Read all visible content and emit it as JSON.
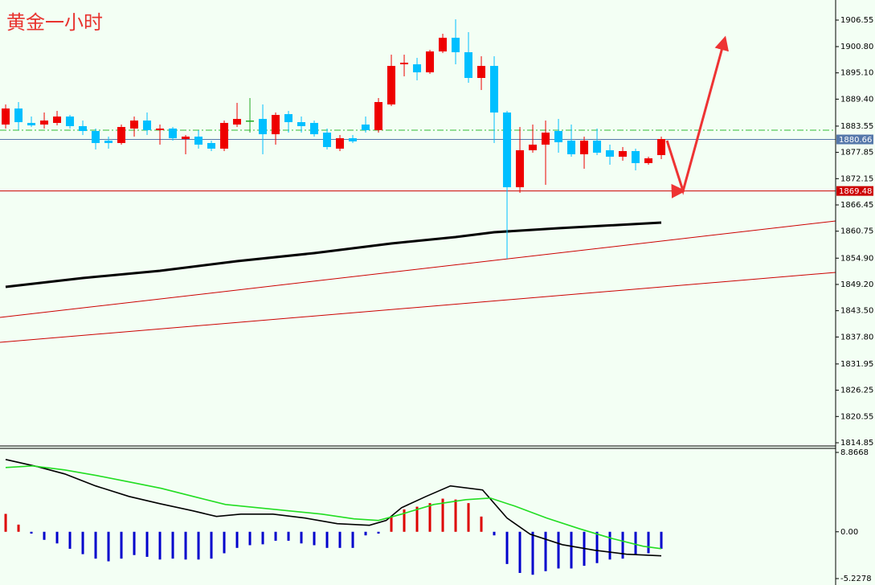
{
  "chart_data": [
    {
      "type": "candlestick",
      "title": "黄金一小时",
      "xlim": [
        -0.44,
        64.56
      ],
      "ylim": [
        1814.15,
        1910.91
      ],
      "yticks": [
        1906.55,
        {
          "value": 1900.8,
          "label": "1900.80"
        },
        {
          "value": 1895.1,
          "label": "1895.10"
        },
        {
          "value": 1889.4,
          "label": "1889.40"
        },
        1883.55,
        1877.85,
        1872.15,
        1866.45,
        1860.75,
        {
          "value": 1854.9,
          "label": "1854.90"
        },
        {
          "value": 1849.2,
          "label": "1849.20"
        },
        {
          "value": 1843.5,
          "label": "1843.50"
        },
        {
          "value": 1837.8,
          "label": "1837.80"
        },
        1831.95,
        1826.25,
        1820.55,
        1814.85
      ],
      "up_color": "#ee0000",
      "down_color": "#00bfff",
      "doji_color": "#22aa22",
      "open": [
        1883.89,
        1887.37,
        1884.24,
        1883.89,
        1884.24,
        1885.63,
        1883.54,
        1882.49,
        1880.4,
        1879.88,
        1883.02,
        1884.76,
        1882.67,
        1883.02,
        1880.75,
        1881.27,
        1879.88,
        1878.66,
        1883.89,
        1884.76,
        1885.11,
        1881.79,
        1886.15,
        1884.41,
        1884.24,
        1882.14,
        1878.66,
        1880.92,
        1883.89,
        1882.67,
        1888.25,
        1896.96,
        1896.96,
        1895.22,
        1899.75,
        1902.72,
        1899.58,
        1894.0,
        1896.61,
        1886.5,
        1870.29,
        1878.31,
        1879.53,
        1882.49,
        1880.4,
        1877.44,
        1880.4,
        1878.31,
        1876.91,
        1878.13,
        1875.52,
        1877.26
      ],
      "high": [
        1888.25,
        1888.77,
        1885.63,
        1886.5,
        1886.85,
        1885.98,
        1884.76,
        1883.02,
        1881.27,
        1883.89,
        1885.63,
        1886.5,
        1883.89,
        1883.36,
        1881.62,
        1882.67,
        1880.4,
        1884.76,
        1888.59,
        1889.64,
        1888.25,
        1886.5,
        1886.85,
        1885.63,
        1884.76,
        1883.02,
        1881.62,
        1881.62,
        1885.63,
        1889.64,
        1899.05,
        1899.05,
        1898.36,
        1900.1,
        1903.59,
        1906.72,
        1903.94,
        1898.71,
        1898.71,
        1886.85,
        1883.36,
        1883.89,
        1884.76,
        1885.11,
        1883.89,
        1881.27,
        1883.02,
        1879.53,
        1879.01,
        1878.66,
        1876.91,
        1881.27
      ],
      "low": [
        1883.02,
        1882.67,
        1883.36,
        1883.02,
        1883.71,
        1883.02,
        1881.62,
        1878.48,
        1878.66,
        1879.53,
        1881.27,
        1881.62,
        1879.53,
        1880.4,
        1877.44,
        1878.66,
        1878.13,
        1878.13,
        1883.36,
        1882.14,
        1877.44,
        1879.53,
        1882.14,
        1882.14,
        1881.27,
        1878.48,
        1878.13,
        1879.88,
        1882.14,
        1882.14,
        1887.9,
        1894.35,
        1893.48,
        1894.87,
        1899.4,
        1896.96,
        1892.95,
        1891.38,
        1879.88,
        1854.77,
        1869.07,
        1877.78,
        1870.81,
        1877.78,
        1876.91,
        1874.3,
        1877.26,
        1875.17,
        1876.04,
        1873.95,
        1875.17,
        1876.39
      ],
      "close": [
        1887.37,
        1884.41,
        1883.71,
        1884.76,
        1885.63,
        1883.54,
        1882.49,
        1879.88,
        1879.88,
        1883.36,
        1884.76,
        1882.67,
        1883.02,
        1880.92,
        1881.27,
        1879.53,
        1878.66,
        1884.24,
        1885.11,
        1884.76,
        1881.79,
        1885.98,
        1884.41,
        1883.54,
        1881.79,
        1879.01,
        1880.92,
        1880.23,
        1882.67,
        1888.77,
        1896.61,
        1897.31,
        1895.22,
        1899.75,
        1902.72,
        1899.58,
        1894.0,
        1896.61,
        1886.5,
        1870.29,
        1878.31,
        1879.53,
        1882.14,
        1880.05,
        1877.44,
        1880.4,
        1877.78,
        1876.91,
        1878.13,
        1875.52,
        1876.56,
        1880.75
      ],
      "moving_average": {
        "color": "#000000",
        "x": [
          0,
          6,
          12,
          18,
          24,
          30,
          35,
          38,
          43,
          51
        ],
        "values": [
          1848.67,
          1850.59,
          1852.16,
          1854.25,
          1855.99,
          1858.08,
          1859.48,
          1860.53,
          1861.4,
          1862.62
        ]
      },
      "trendlines": [
        {
          "color": "#cc0000",
          "x": [
            -0.44,
            64.56
          ],
          "values": [
            1842.05,
            1862.97
          ]
        },
        {
          "color": "#cc0000",
          "x": [
            -0.44,
            64.56
          ],
          "values": [
            1836.64,
            1851.81
          ]
        }
      ],
      "price_lines": [
        {
          "value": 1882.67,
          "color": "#33bb33",
          "style": "dashdot",
          "show_label": false
        },
        {
          "value": 1880.66,
          "color": "#5577aa",
          "style": "solid",
          "show_label": true
        },
        {
          "value": 1869.48,
          "color": "#cc0000",
          "style": "solid",
          "show_label": true
        }
      ],
      "projection": {
        "color": "#ee3333",
        "x": [
          51.44,
          52.69,
          55.94
        ],
        "values": [
          1880.4,
          1869.48,
          1902.55
        ]
      }
    },
    {
      "type": "macd",
      "xlim": [
        -0.44,
        64.56
      ],
      "ylim": [
        -5.2278,
        8.8668
      ],
      "yticks": [
        8.8668,
        {
          "value": 0,
          "label": "0.00"
        },
        -5.2278
      ],
      "histogram": {
        "up_color": "#dd0000",
        "down_color": "#0000cc",
        "values": [
          2.0,
          0.8,
          -0.2,
          -0.9,
          -1.3,
          -1.9,
          -2.5,
          -3.0,
          -3.3,
          -3.0,
          -2.6,
          -2.8,
          -3.1,
          -3.0,
          -3.1,
          -3.1,
          -3.0,
          -2.4,
          -1.8,
          -1.5,
          -1.4,
          -1.0,
          -1.0,
          -1.3,
          -1.5,
          -1.8,
          -1.8,
          -1.8,
          -0.4,
          -0.2,
          1.7,
          2.5,
          2.8,
          3.2,
          3.7,
          3.6,
          3.2,
          1.7,
          -0.4,
          -3.6,
          -4.6,
          -4.8,
          -4.4,
          -4.1,
          -4.1,
          -3.8,
          -3.5,
          -3.1,
          -3.0,
          -2.6,
          -2.4,
          -1.9
        ]
      },
      "series": [
        {
          "color": "#000000",
          "x": [
            0,
            2.5,
            4.6,
            7,
            9.6,
            12,
            14.6,
            16.4,
            18.3,
            20.8,
            23.3,
            25.8,
            28.3,
            29.6,
            30.8,
            32.7,
            34.6,
            37.1,
            39,
            40.8,
            43.3,
            45.8,
            48.3,
            51
          ],
          "values": [
            8.08,
            7.27,
            6.46,
            5.12,
            3.95,
            3.14,
            2.33,
            1.71,
            1.97,
            1.97,
            1.53,
            0.9,
            0.72,
            1.26,
            2.69,
            3.95,
            5.12,
            4.67,
            1.53,
            -0.27,
            -1.44,
            -2.06,
            -2.51,
            -2.69
          ]
        },
        {
          "color": "#22dd22",
          "x": [
            0,
            2.1,
            4.6,
            7.1,
            9.6,
            12.1,
            14.6,
            17.1,
            19.6,
            22.1,
            24.6,
            27.1,
            29,
            30.8,
            33.3,
            35.8,
            37.7,
            39.6,
            42.1,
            44.6,
            47.1,
            49.6,
            51
          ],
          "values": [
            7.18,
            7.36,
            6.91,
            6.28,
            5.57,
            4.85,
            3.95,
            3.05,
            2.69,
            2.33,
            1.97,
            1.44,
            1.26,
            1.97,
            3.05,
            3.59,
            3.77,
            2.87,
            1.53,
            0.36,
            -0.72,
            -1.62,
            -1.89
          ]
        }
      ]
    }
  ]
}
